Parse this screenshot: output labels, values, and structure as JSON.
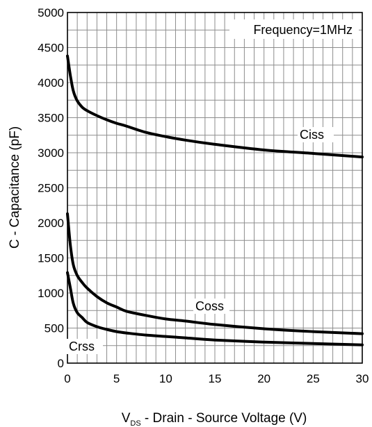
{
  "chart_data": {
    "type": "line",
    "xlabel_main": "V",
    "xlabel_sub": "DS",
    "xlabel_rest": " - Drain - Source Voltage (V)",
    "ylabel": "C - Capacitance (pF)",
    "xlim": [
      0,
      30
    ],
    "ylim": [
      0,
      5000
    ],
    "xticks": [
      0,
      5,
      10,
      15,
      20,
      25,
      30
    ],
    "yticks": [
      0,
      500,
      1000,
      1500,
      2000,
      2500,
      3000,
      3500,
      4000,
      4500,
      5000
    ],
    "grid": true,
    "annotation": "Frequency=1MHz",
    "series": [
      {
        "name": "Ciss",
        "x": [
          0,
          0.3,
          0.6,
          1,
          1.5,
          2,
          3,
          4,
          5,
          6,
          8,
          10,
          12,
          15,
          20,
          25,
          30
        ],
        "y": [
          4380,
          4100,
          3880,
          3740,
          3650,
          3600,
          3530,
          3470,
          3420,
          3380,
          3290,
          3230,
          3180,
          3120,
          3040,
          2990,
          2940
        ]
      },
      {
        "name": "Coss",
        "x": [
          0,
          0.3,
          0.6,
          1,
          1.5,
          2,
          3,
          4,
          5,
          6,
          8,
          10,
          12,
          15,
          20,
          25,
          30
        ],
        "y": [
          2130,
          1680,
          1400,
          1250,
          1150,
          1070,
          950,
          860,
          800,
          740,
          680,
          630,
          600,
          550,
          490,
          450,
          420
        ]
      },
      {
        "name": "Crss",
        "x": [
          0,
          0.3,
          0.6,
          1,
          1.5,
          2,
          3,
          4,
          5,
          6,
          8,
          10,
          12,
          15,
          20,
          25,
          30
        ],
        "y": [
          1290,
          1070,
          850,
          720,
          650,
          580,
          520,
          480,
          450,
          430,
          400,
          380,
          360,
          330,
          300,
          280,
          260
        ]
      }
    ]
  }
}
